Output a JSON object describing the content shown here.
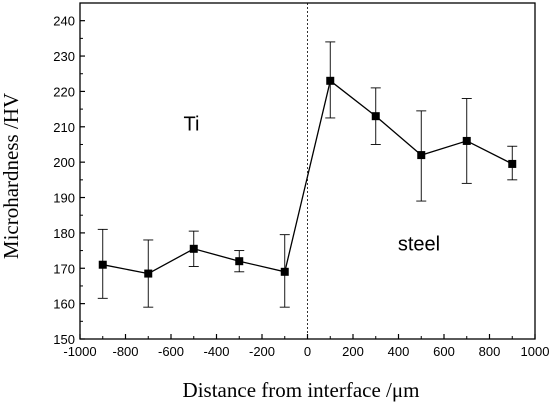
{
  "chart_data": {
    "type": "line",
    "title": "",
    "xlabel": "Distance from interface /μm",
    "ylabel": "Microhardness /HV",
    "xlim": [
      -1000,
      1000
    ],
    "ylim": [
      150,
      245
    ],
    "x_ticks": [
      -1000,
      -800,
      -600,
      -400,
      -200,
      0,
      200,
      400,
      600,
      800,
      1000
    ],
    "y_ticks": [
      150,
      160,
      170,
      180,
      190,
      200,
      210,
      220,
      230,
      240
    ],
    "x_tick_labels": [
      "-1000",
      "-800",
      "-600",
      "-400",
      "-200",
      "0",
      "200",
      "400",
      "600",
      "800",
      "1000"
    ],
    "y_tick_labels": [
      "150",
      "160",
      "170",
      "180",
      "190",
      "200",
      "210",
      "220",
      "230",
      "240"
    ],
    "grid": false,
    "interface_line_x": 0,
    "annotations": [
      {
        "text": "Ti",
        "x": -510,
        "y": 209
      },
      {
        "text": "steel",
        "x": 490,
        "y": 175
      }
    ],
    "series": [
      {
        "color": "#000000",
        "marker": "square",
        "points": [
          {
            "x": -900,
            "y": 171,
            "err_low": 161.5,
            "err_high": 181
          },
          {
            "x": -700,
            "y": 168.5,
            "err_low": 159,
            "err_high": 178
          },
          {
            "x": -500,
            "y": 175.5,
            "err_low": 170.5,
            "err_high": 180.5
          },
          {
            "x": -300,
            "y": 172,
            "err_low": 169,
            "err_high": 175
          },
          {
            "x": -100,
            "y": 169,
            "err_low": 159,
            "err_high": 179.5
          },
          {
            "x": 100,
            "y": 223,
            "err_low": 212.5,
            "err_high": 234
          },
          {
            "x": 300,
            "y": 213,
            "err_low": 205,
            "err_high": 221
          },
          {
            "x": 500,
            "y": 202,
            "err_low": 189,
            "err_high": 214.5
          },
          {
            "x": 700,
            "y": 206,
            "err_low": 194,
            "err_high": 218
          },
          {
            "x": 900,
            "y": 199.5,
            "err_low": 195,
            "err_high": 204.5
          }
        ]
      }
    ]
  }
}
